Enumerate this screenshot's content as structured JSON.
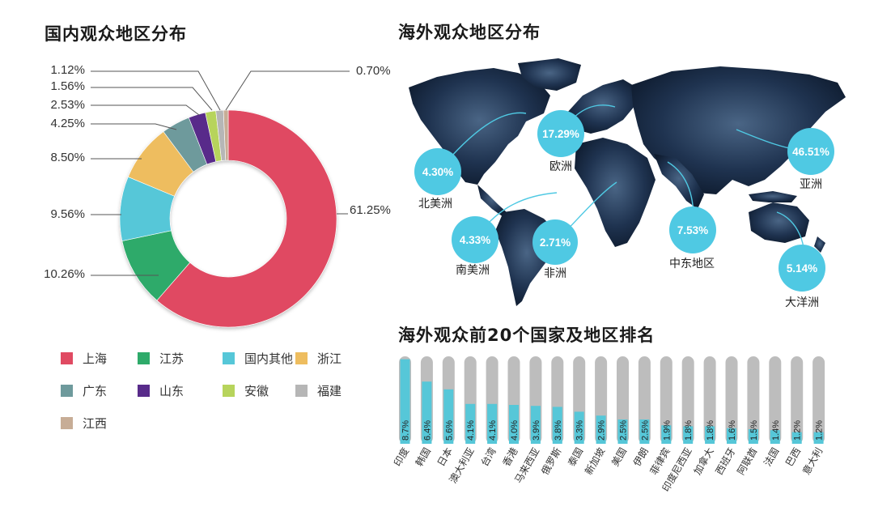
{
  "titles": {
    "donut": "国内观众地区分布",
    "map": "海外观众地区分布",
    "bar": "海外观众前20个国家及地区排名"
  },
  "colors": {
    "上海": "#e04a62",
    "江苏": "#2eaa6a",
    "国内其他": "#56c7d8",
    "浙江": "#eebd5f",
    "广东": "#6e9a9c",
    "山东": "#582b8a",
    "安徽": "#b7d45c",
    "福建": "#b6b6b6",
    "江西": "#c7ad96",
    "bubble": "#4fc9e3",
    "bar_fill": "#56c7d8",
    "bar_track": "#bdbdbd"
  },
  "chart_data": [
    {
      "type": "pie",
      "title": "国内观众地区分布",
      "slices": [
        {
          "name": "上海",
          "value": 61.25,
          "label": "61.25%"
        },
        {
          "name": "江苏",
          "value": 10.26,
          "label": "10.26%"
        },
        {
          "name": "国内其他",
          "value": 9.56,
          "label": "9.56%"
        },
        {
          "name": "浙江",
          "value": 8.5,
          "label": "8.50%"
        },
        {
          "name": "广东",
          "value": 4.25,
          "label": "4.25%"
        },
        {
          "name": "山东",
          "value": 2.53,
          "label": "2.53%"
        },
        {
          "name": "安徽",
          "value": 1.56,
          "label": "1.56%"
        },
        {
          "name": "福建",
          "value": 1.12,
          "label": "1.12%"
        },
        {
          "name": "江西",
          "value": 0.7,
          "label": "0.70%"
        }
      ],
      "legend": [
        "上海",
        "江苏",
        "国内其他",
        "浙江",
        "广东",
        "山东",
        "安徽",
        "福建",
        "江西"
      ]
    },
    {
      "type": "map-bubbles",
      "title": "海外观众地区分布",
      "regions": [
        {
          "name": "北美洲",
          "label": "4.30%",
          "value": 4.3
        },
        {
          "name": "欧洲",
          "label": "17.29%",
          "value": 17.29
        },
        {
          "name": "亚洲",
          "label": "46.51%",
          "value": 46.51
        },
        {
          "name": "南美洲",
          "label": "4.33%",
          "value": 4.33
        },
        {
          "name": "非洲",
          "label": "2.71%",
          "value": 2.71
        },
        {
          "name": "中东地区",
          "label": "7.53%",
          "value": 7.53
        },
        {
          "name": "大洋洲",
          "label": "5.14%",
          "value": 5.14
        }
      ]
    },
    {
      "type": "bar",
      "title": "海外观众前20个国家及地区排名",
      "categories": [
        "印度",
        "韩国",
        "日本",
        "澳大利亚",
        "台湾",
        "香港",
        "马来西亚",
        "俄罗斯",
        "泰国",
        "新加坡",
        "美国",
        "伊朗",
        "菲律宾",
        "印度尼西亚",
        "加拿大",
        "西班牙",
        "阿联酋",
        "法国",
        "巴西",
        "意大利"
      ],
      "labels": [
        "8.7%",
        "6.4%",
        "5.6%",
        "4.1%",
        "4.1%",
        "4.0%",
        "3.9%",
        "3.8%",
        "3.3%",
        "2.9%",
        "2.5%",
        "2.5%",
        "1.9%",
        "1.8%",
        "1.8%",
        "1.6%",
        "1.5%",
        "1.4%",
        "1.2%",
        "1.2%"
      ],
      "values": [
        8.7,
        6.4,
        5.6,
        4.1,
        4.1,
        4.0,
        3.9,
        3.8,
        3.3,
        2.9,
        2.5,
        2.5,
        1.9,
        1.8,
        1.8,
        1.6,
        1.5,
        1.4,
        1.2,
        1.2
      ]
    }
  ]
}
